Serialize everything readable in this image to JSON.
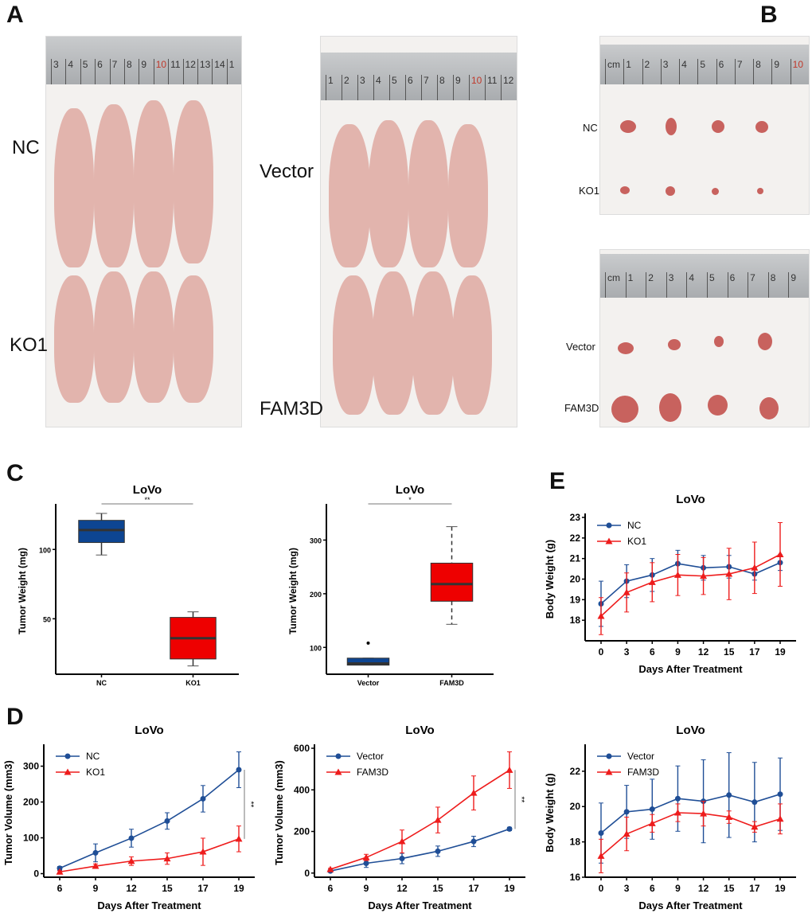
{
  "panels": {
    "A": "A",
    "B": "B",
    "C": "C",
    "D": "D",
    "E": "E"
  },
  "photoA": {
    "left_groups": [
      "NC",
      "KO1"
    ],
    "right_groups": [
      "Vector",
      "FAM3D"
    ],
    "ruler_left": [
      "3",
      "4",
      "5",
      "6",
      "7",
      "8",
      "9",
      "10",
      "11",
      "12",
      "13",
      "14",
      "1"
    ],
    "ruler_right": [
      "1",
      "2",
      "3",
      "4",
      "5",
      "6",
      "7",
      "8",
      "9",
      "10",
      "11",
      "12"
    ]
  },
  "photoB": {
    "top_groups": [
      "NC",
      "KO1"
    ],
    "bottom_groups": [
      "Vector",
      "FAM3D"
    ],
    "ruler_top": [
      "cm",
      "1",
      "2",
      "3",
      "4",
      "5",
      "6",
      "7",
      "8",
      "9",
      "10"
    ],
    "ruler_bottom": [
      "cm",
      "1",
      "2",
      "3",
      "4",
      "5",
      "6",
      "7",
      "8",
      "9"
    ]
  },
  "colors": {
    "blue": "#1f4e96",
    "red": "#ee1c1c",
    "box_blue": "#0d4592",
    "box_red": "#ee0000"
  },
  "chart_data": [
    {
      "id": "C1",
      "type": "box",
      "title": "LoVo",
      "ylabel": "Tumor Weight (mg)",
      "xlabel": "",
      "categories": [
        "NC",
        "KO1"
      ],
      "ylim": [
        10,
        130
      ],
      "yticks": [
        50,
        100
      ],
      "boxes": [
        {
          "min": 96,
          "q1": 105,
          "median": 114,
          "q3": 121,
          "max": 126,
          "color": "#0d4592"
        },
        {
          "min": 16,
          "q1": 21,
          "median": 36,
          "q3": 51,
          "max": 55,
          "color": "#ee0000"
        }
      ],
      "significance": "**"
    },
    {
      "id": "C2",
      "type": "box",
      "title": "LoVo",
      "ylabel": "Tumor Weight (mg)",
      "xlabel": "",
      "categories": [
        "Vector",
        "FAM3D"
      ],
      "ylim": [
        50,
        360
      ],
      "yticks": [
        100,
        200,
        300
      ],
      "boxes": [
        {
          "min": 67,
          "q1": 67,
          "median": 70,
          "q3": 80,
          "max": 80,
          "outliers": [
            108
          ],
          "color": "#0d4592"
        },
        {
          "min": 143,
          "q1": 186,
          "median": 218,
          "q3": 257,
          "max": 325,
          "color": "#ee0000"
        }
      ],
      "significance": "*"
    },
    {
      "id": "E",
      "type": "line",
      "title": "LoVo",
      "ylabel": "Body Weight (g)",
      "xlabel": "Days After Treatment",
      "x": [
        "0",
        "3",
        "6",
        "9",
        "12",
        "15",
        "17",
        "19"
      ],
      "ylim": [
        17,
        23
      ],
      "yticks": [
        18,
        19,
        20,
        21,
        22,
        23
      ],
      "legend": "top-left",
      "series": [
        {
          "name": "NC",
          "marker": "circle",
          "color": "#1f4e96",
          "values": [
            18.8,
            19.9,
            20.2,
            20.75,
            20.55,
            20.6,
            20.25,
            20.8
          ],
          "errors": [
            1.1,
            0.8,
            0.8,
            0.65,
            0.6,
            0.55,
            0.3,
            0.38
          ]
        },
        {
          "name": "KO1",
          "marker": "triangle",
          "color": "#ee1c1c",
          "values": [
            18.2,
            19.35,
            19.85,
            20.2,
            20.15,
            20.25,
            20.55,
            21.2
          ],
          "errors": [
            0.9,
            0.95,
            0.95,
            1.0,
            0.9,
            1.25,
            1.25,
            1.55
          ]
        }
      ]
    },
    {
      "id": "D1",
      "type": "line",
      "title": "LoVo",
      "ylabel": "Tumor Volume (mm3)",
      "xlabel": "Days After Treatment",
      "x": [
        "6",
        "9",
        "12",
        "15",
        "17",
        "19"
      ],
      "ylim": [
        -10,
        350
      ],
      "yticks": [
        0,
        100,
        200,
        300
      ],
      "legend": "top-left",
      "significance": "**",
      "series": [
        {
          "name": "NC",
          "marker": "circle",
          "color": "#1f4e96",
          "values": [
            15,
            58,
            99,
            147,
            209,
            290
          ],
          "errors": [
            5,
            25,
            25,
            23,
            37,
            50
          ]
        },
        {
          "name": "KO1",
          "marker": "triangle",
          "color": "#ee1c1c",
          "values": [
            5,
            21,
            35,
            42,
            61,
            97
          ],
          "errors": [
            3,
            6,
            12,
            16,
            38,
            36
          ]
        }
      ]
    },
    {
      "id": "D2",
      "type": "line",
      "title": "LoVo",
      "ylabel": "Tumor Volume (mm3)",
      "xlabel": "Days After Treatment",
      "x": [
        "6",
        "9",
        "12",
        "15",
        "17",
        "19"
      ],
      "ylim": [
        -20,
        600
      ],
      "yticks": [
        0,
        200,
        400,
        600
      ],
      "legend": "top-left",
      "significance": "**",
      "series": [
        {
          "name": "Vector",
          "marker": "circle",
          "color": "#1f4e96",
          "values": [
            10,
            47,
            70,
            105,
            152,
            212
          ],
          "errors": [
            5,
            20,
            25,
            25,
            25,
            8
          ]
        },
        {
          "name": "FAM3D",
          "marker": "triangle",
          "color": "#ee1c1c",
          "values": [
            18,
            75,
            152,
            255,
            385,
            495
          ],
          "errors": [
            5,
            15,
            55,
            62,
            82,
            88
          ]
        }
      ]
    },
    {
      "id": "D3",
      "type": "line",
      "title": "LoVo",
      "ylabel": "Body Weight (g)",
      "xlabel": "Days After Treatment",
      "x": [
        "0",
        "3",
        "6",
        "9",
        "12",
        "15",
        "17",
        "19"
      ],
      "ylim": [
        16,
        23.3
      ],
      "yticks": [
        16,
        18,
        20,
        22
      ],
      "legend": "top-left",
      "series": [
        {
          "name": "Vector",
          "marker": "circle",
          "color": "#1f4e96",
          "values": [
            18.5,
            19.7,
            19.85,
            20.45,
            20.3,
            20.65,
            20.25,
            20.7
          ],
          "errors": [
            1.7,
            1.5,
            1.7,
            1.85,
            2.35,
            2.4,
            2.25,
            2.05
          ]
        },
        {
          "name": "FAM3D",
          "marker": "triangle",
          "color": "#ee1c1c",
          "values": [
            17.2,
            18.45,
            19.05,
            19.65,
            19.6,
            19.4,
            18.85,
            19.3
          ],
          "errors": [
            0.95,
            0.95,
            0.5,
            0.5,
            0.7,
            0.35,
            0.3,
            0.85
          ]
        }
      ]
    }
  ]
}
